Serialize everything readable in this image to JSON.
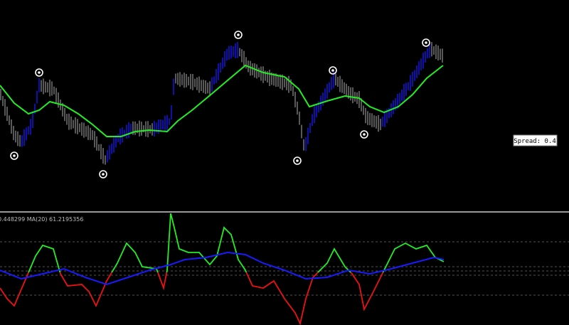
{
  "spread_label": "Spread: 0.4",
  "indicator_label": "0.448299 MA(20) 61.2195356"
}
